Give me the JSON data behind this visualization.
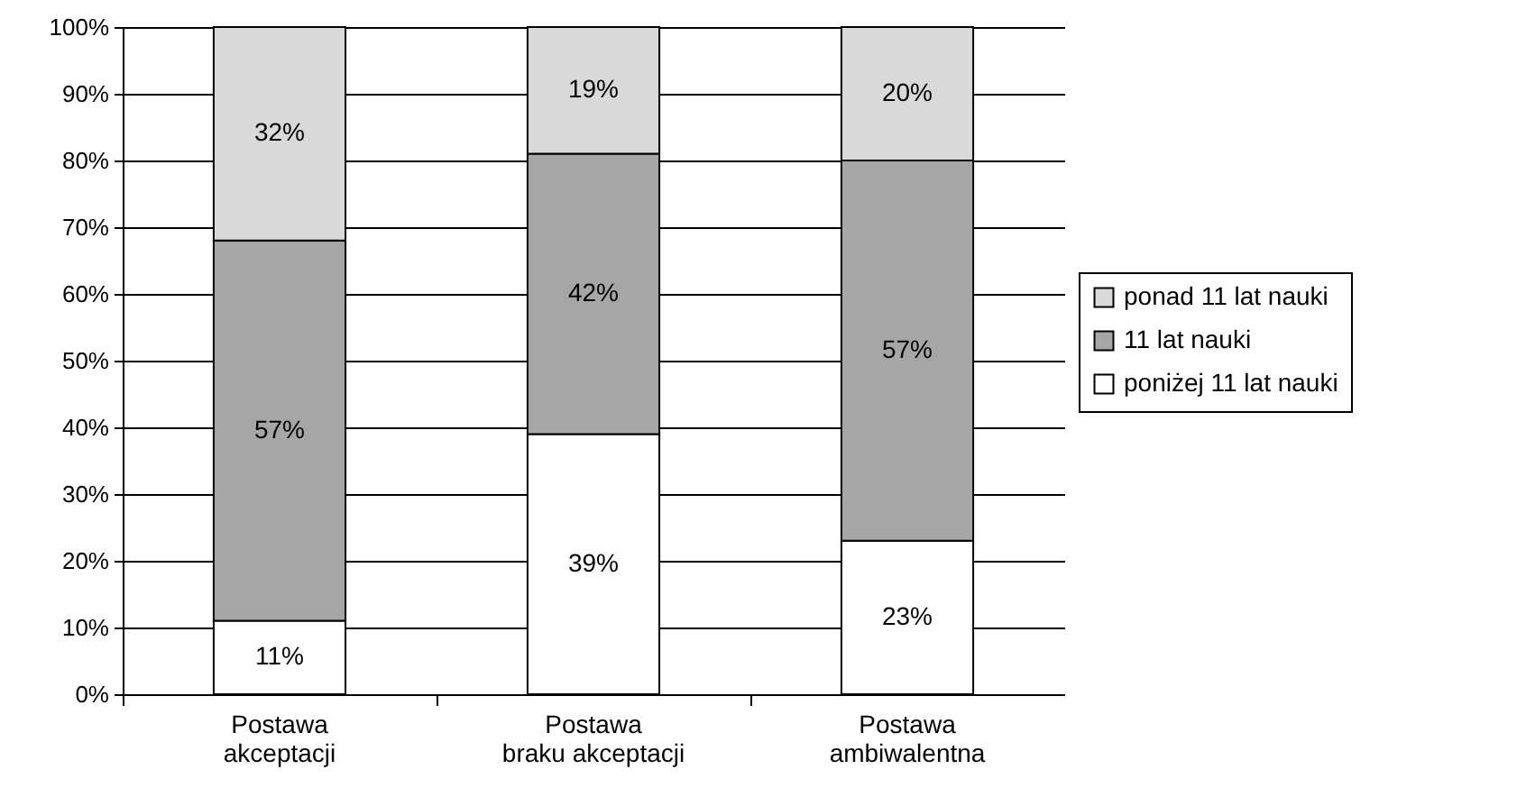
{
  "chart_data": {
    "type": "bar",
    "stacked": true,
    "categories": [
      "Postawa\nakceptacji",
      "Postawa\nbraku akceptacji",
      "Postawa\nambiwalentna"
    ],
    "series": [
      {
        "name": "poniżej 11 lat nauki",
        "color": "#ffffff",
        "values": [
          11,
          39,
          23
        ],
        "value_labels": [
          "11%",
          "39%",
          "23%"
        ]
      },
      {
        "name": "11 lat nauki",
        "color": "#a6a6a6",
        "values": [
          57,
          42,
          57
        ],
        "value_labels": [
          "57%",
          "42%",
          "57%"
        ]
      },
      {
        "name": "ponad 11 lat nauki",
        "color": "#d9d9d9",
        "values": [
          32,
          19,
          20
        ],
        "value_labels": [
          "32%",
          "19%",
          "20%"
        ]
      }
    ],
    "ylim": [
      0,
      100
    ],
    "yticks": [
      {
        "value": 0,
        "label": "0%"
      },
      {
        "value": 10,
        "label": "10%"
      },
      {
        "value": 20,
        "label": "20%"
      },
      {
        "value": 30,
        "label": "30%"
      },
      {
        "value": 40,
        "label": "40%"
      },
      {
        "value": 50,
        "label": "50%"
      },
      {
        "value": 60,
        "label": "60%"
      },
      {
        "value": 70,
        "label": "70%"
      },
      {
        "value": 80,
        "label": "80%"
      },
      {
        "value": 90,
        "label": "90%"
      },
      {
        "value": 100,
        "label": "100%"
      }
    ],
    "grid": "y",
    "legend": "right"
  }
}
